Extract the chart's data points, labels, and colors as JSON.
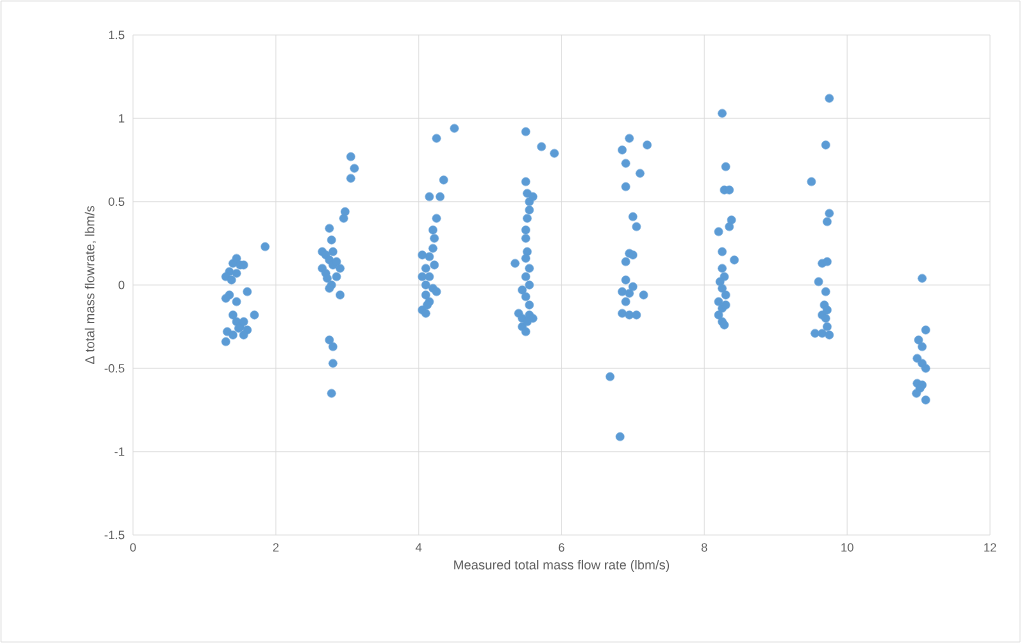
{
  "chart_data": {
    "type": "scatter",
    "xlabel": "Measured total mass flow rate (lbm/s)",
    "ylabel": "Δ total mass flowrate, lbm/s",
    "x": [
      1.35,
      1.4,
      1.45,
      1.5,
      1.55,
      1.3,
      1.45,
      1.38,
      1.35,
      1.45,
      1.6,
      1.3,
      1.4,
      1.45,
      1.5,
      1.55,
      1.6,
      1.55,
      1.7,
      1.32,
      1.3,
      1.4,
      1.48,
      1.85,
      2.75,
      2.78,
      2.65,
      2.7,
      2.75,
      2.8,
      2.65,
      2.7,
      2.85,
      2.9,
      2.72,
      2.78,
      2.75,
      2.8,
      2.85,
      2.9,
      2.95,
      2.97,
      3.05,
      3.1,
      3.05,
      2.75,
      2.8,
      2.8,
      2.78,
      4.5,
      4.25,
      4.35,
      4.15,
      4.3,
      4.25,
      4.2,
      4.22,
      4.2,
      4.15,
      4.05,
      4.1,
      4.05,
      4.15,
      4.1,
      4.2,
      4.25,
      4.1,
      4.15,
      4.05,
      4.1,
      4.22,
      4.12,
      5.5,
      5.72,
      5.9,
      5.5,
      5.52,
      5.55,
      5.6,
      5.55,
      5.52,
      5.5,
      5.5,
      5.52,
      5.5,
      5.35,
      5.55,
      5.5,
      5.55,
      5.45,
      5.5,
      5.55,
      5.4,
      5.45,
      5.55,
      5.6,
      5.45,
      5.5,
      5.52,
      6.85,
      6.95,
      7.2,
      6.9,
      7.1,
      6.9,
      7.0,
      7.05,
      6.95,
      7.0,
      6.9,
      6.9,
      7.0,
      6.85,
      6.95,
      7.15,
      6.9,
      6.85,
      6.95,
      7.05,
      6.68,
      6.82,
      8.25,
      8.3,
      8.28,
      8.35,
      8.38,
      8.35,
      8.2,
      8.25,
      8.42,
      8.25,
      8.28,
      8.22,
      8.25,
      8.3,
      8.2,
      8.25,
      8.3,
      8.2,
      8.25,
      8.28,
      9.75,
      9.7,
      9.5,
      9.75,
      9.72,
      9.65,
      9.72,
      9.6,
      9.7,
      9.68,
      9.72,
      9.65,
      9.7,
      9.72,
      9.55,
      9.65,
      9.75,
      11.05,
      11.1,
      11.0,
      11.05,
      10.98,
      11.05,
      11.1,
      10.98,
      11.05,
      11.02,
      10.97,
      11.1
    ],
    "values": [
      0.08,
      0.13,
      0.16,
      0.12,
      0.12,
      0.05,
      0.07,
      0.03,
      -0.06,
      -0.1,
      -0.04,
      -0.08,
      -0.18,
      -0.22,
      -0.25,
      -0.22,
      -0.27,
      -0.3,
      -0.18,
      -0.28,
      -0.34,
      -0.3,
      -0.26,
      0.23,
      0.34,
      0.27,
      0.2,
      0.18,
      0.15,
      0.12,
      0.1,
      0.07,
      0.14,
      0.1,
      0.04,
      0.0,
      -0.02,
      0.2,
      0.05,
      -0.06,
      0.4,
      0.44,
      0.64,
      0.7,
      0.77,
      -0.33,
      -0.37,
      -0.47,
      -0.65,
      0.94,
      0.88,
      0.63,
      0.53,
      0.53,
      0.4,
      0.33,
      0.28,
      0.22,
      0.17,
      0.18,
      0.1,
      0.05,
      0.05,
      0.0,
      -0.02,
      -0.04,
      -0.06,
      -0.1,
      -0.15,
      -0.17,
      0.12,
      -0.12,
      0.92,
      0.83,
      0.79,
      0.62,
      0.55,
      0.5,
      0.53,
      0.45,
      0.4,
      0.33,
      0.28,
      0.2,
      0.16,
      0.13,
      0.1,
      0.05,
      0.0,
      -0.03,
      -0.07,
      -0.12,
      -0.17,
      -0.2,
      -0.18,
      -0.2,
      -0.25,
      -0.28,
      -0.22,
      0.81,
      0.88,
      0.84,
      0.73,
      0.67,
      0.59,
      0.41,
      0.35,
      0.19,
      0.18,
      0.14,
      0.03,
      -0.01,
      -0.04,
      -0.05,
      -0.06,
      -0.1,
      -0.17,
      -0.18,
      -0.18,
      -0.55,
      -0.91,
      1.03,
      0.71,
      0.57,
      0.57,
      0.39,
      0.35,
      0.32,
      0.2,
      0.15,
      0.1,
      0.05,
      0.02,
      -0.02,
      -0.06,
      -0.1,
      -0.14,
      -0.12,
      -0.18,
      -0.22,
      -0.24,
      1.12,
      0.84,
      0.62,
      0.43,
      0.38,
      0.13,
      0.14,
      0.02,
      -0.04,
      -0.12,
      -0.15,
      -0.18,
      -0.2,
      -0.25,
      -0.29,
      -0.29,
      -0.3,
      0.04,
      -0.27,
      -0.33,
      -0.37,
      -0.44,
      -0.47,
      -0.5,
      -0.59,
      -0.6,
      -0.62,
      -0.65,
      -0.69
    ],
    "color": "#5b9bd5",
    "marker": "circle",
    "xlim": [
      0,
      12
    ],
    "xticks": [
      0,
      2,
      4,
      6,
      8,
      10,
      12
    ],
    "ylim": [
      -1.5,
      1.5
    ],
    "yticks": [
      -1.5,
      -1,
      -0.5,
      0,
      0.5,
      1,
      1.5
    ],
    "grid": true
  }
}
